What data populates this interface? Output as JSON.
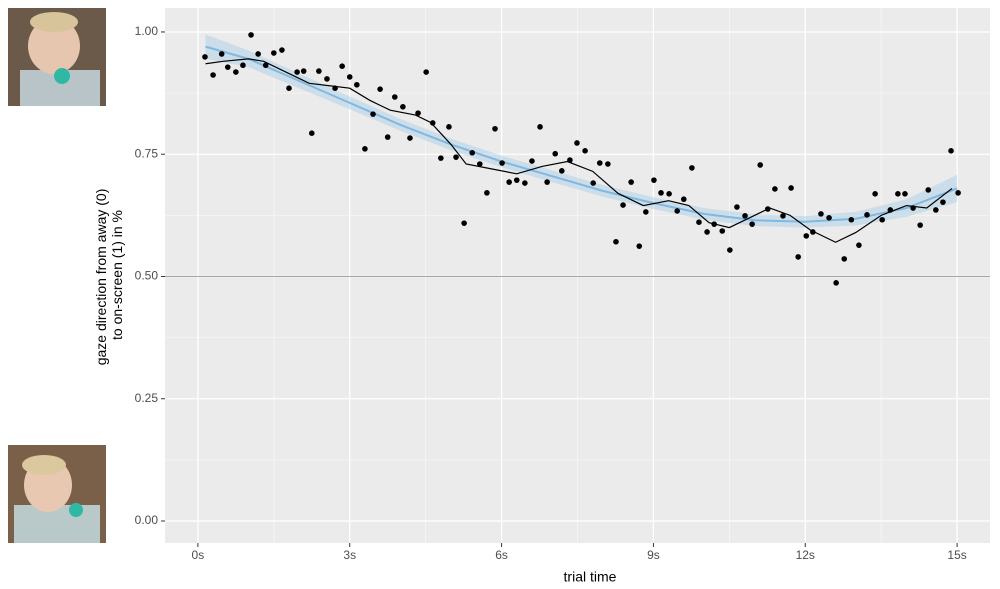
{
  "chart_data": {
    "type": "scatter",
    "xlabel": "trial time",
    "ylabel": [
      "gaze direction from away (0)",
      "to on-screen (1) in %"
    ],
    "xlim": [
      -0.65,
      15.65
    ],
    "ylim": [
      -0.045,
      1.049
    ],
    "xticks": [
      {
        "value": 0,
        "label": "0s"
      },
      {
        "value": 3,
        "label": "3s"
      },
      {
        "value": 6,
        "label": "6s"
      },
      {
        "value": 9,
        "label": "9s"
      },
      {
        "value": 12,
        "label": "12s"
      },
      {
        "value": 15,
        "label": "15s"
      }
    ],
    "yticks": [
      {
        "value": 0,
        "label": "0.00"
      },
      {
        "value": 0.25,
        "label": "0.25"
      },
      {
        "value": 0.5,
        "label": "0.50"
      },
      {
        "value": 0.75,
        "label": "0.75"
      },
      {
        "value": 1,
        "label": "1.00"
      }
    ],
    "xminor": [
      1.5,
      4.5,
      7.5,
      10.5,
      13.5
    ],
    "yminor": [
      0.125,
      0.375,
      0.625,
      0.875
    ],
    "grid": true,
    "hline": 0.5,
    "points": {
      "color": "#000000",
      "x": [
        0.14,
        0.3,
        0.47,
        0.59,
        0.75,
        0.89,
        1.05,
        1.19,
        1.34,
        1.5,
        1.66,
        1.8,
        1.96,
        2.09,
        2.25,
        2.39,
        2.55,
        2.71,
        2.85,
        3.0,
        3.14,
        3.3,
        3.46,
        3.6,
        3.75,
        3.89,
        4.05,
        4.19,
        4.35,
        4.51,
        4.64,
        4.8,
        4.96,
        5.1,
        5.26,
        5.42,
        5.57,
        5.71,
        5.87,
        6.01,
        6.15,
        6.3,
        6.46,
        6.6,
        6.76,
        6.9,
        7.06,
        7.19,
        7.35,
        7.49,
        7.65,
        7.81,
        7.94,
        8.1,
        8.26,
        8.4,
        8.56,
        8.72,
        8.85,
        9.01,
        9.15,
        9.31,
        9.47,
        9.6,
        9.76,
        9.9,
        10.06,
        10.2,
        10.36,
        10.51,
        10.65,
        10.81,
        10.95,
        11.11,
        11.26,
        11.4,
        11.56,
        11.72,
        11.86,
        12.02,
        12.15,
        12.31,
        12.47,
        12.61,
        12.77,
        12.91,
        13.06,
        13.22,
        13.38,
        13.52,
        13.68,
        13.83,
        13.97,
        14.13,
        14.27,
        14.43,
        14.58,
        14.72,
        14.88,
        15.02
      ],
      "values": [
        0.949,
        0.912,
        0.955,
        0.928,
        0.918,
        0.932,
        0.994,
        0.955,
        0.932,
        0.957,
        0.963,
        0.885,
        0.918,
        0.92,
        0.793,
        0.92,
        0.904,
        0.885,
        0.93,
        0.908,
        0.892,
        0.761,
        0.832,
        0.883,
        0.785,
        0.867,
        0.847,
        0.783,
        0.834,
        0.918,
        0.814,
        0.742,
        0.806,
        0.744,
        0.609,
        0.753,
        0.73,
        0.671,
        0.802,
        0.732,
        0.693,
        0.697,
        0.691,
        0.736,
        0.806,
        0.693,
        0.751,
        0.716,
        0.738,
        0.773,
        0.757,
        0.691,
        0.732,
        0.73,
        0.571,
        0.646,
        0.693,
        0.562,
        0.632,
        0.697,
        0.671,
        0.669,
        0.634,
        0.658,
        0.722,
        0.611,
        0.591,
        0.607,
        0.593,
        0.554,
        0.642,
        0.624,
        0.607,
        0.728,
        0.638,
        0.679,
        0.624,
        0.681,
        0.54,
        0.583,
        0.591,
        0.628,
        0.62,
        0.487,
        0.536,
        0.616,
        0.564,
        0.626,
        0.669,
        0.616,
        0.636,
        0.669,
        0.669,
        0.64,
        0.605,
        0.677,
        0.636,
        0.652,
        0.757,
        0.671
      ]
    },
    "band": {
      "color": "#a6cde9",
      "x": [
        0.15,
        1,
        2,
        3,
        4,
        5,
        6,
        7,
        8,
        9,
        10,
        11,
        12,
        13,
        14,
        15
      ],
      "lower": [
        0.945,
        0.928,
        0.885,
        0.842,
        0.798,
        0.758,
        0.723,
        0.693,
        0.663,
        0.638,
        0.616,
        0.603,
        0.6,
        0.604,
        0.622,
        0.652
      ],
      "upper": [
        0.995,
        0.962,
        0.915,
        0.868,
        0.822,
        0.782,
        0.747,
        0.717,
        0.687,
        0.662,
        0.64,
        0.627,
        0.624,
        0.632,
        0.658,
        0.708
      ]
    },
    "lines": [
      {
        "color": "#7fb8e0",
        "width": 2,
        "x": [
          0.15,
          1,
          2,
          3,
          4,
          5,
          6,
          7,
          8,
          9,
          10,
          11,
          12,
          13,
          14,
          15
        ],
        "values": [
          0.97,
          0.945,
          0.9,
          0.855,
          0.81,
          0.77,
          0.735,
          0.705,
          0.675,
          0.65,
          0.628,
          0.615,
          0.612,
          0.618,
          0.64,
          0.68
        ]
      },
      {
        "color": "#000000",
        "width": 1.2,
        "x": [
          0.15,
          0.5,
          1.0,
          1.3,
          1.8,
          2.2,
          2.6,
          3.0,
          3.4,
          3.8,
          4.3,
          4.6,
          5.0,
          5.3,
          5.8,
          6.3,
          6.8,
          7.3,
          7.8,
          8.3,
          8.8,
          9.3,
          9.7,
          10.1,
          10.5,
          10.9,
          11.3,
          11.7,
          12.1,
          12.6,
          13.0,
          13.5,
          14.0,
          14.4,
          14.9
        ],
        "values": [
          0.935,
          0.94,
          0.945,
          0.94,
          0.915,
          0.895,
          0.89,
          0.885,
          0.86,
          0.84,
          0.83,
          0.815,
          0.77,
          0.73,
          0.72,
          0.71,
          0.725,
          0.735,
          0.715,
          0.67,
          0.645,
          0.655,
          0.645,
          0.61,
          0.6,
          0.62,
          0.64,
          0.625,
          0.595,
          0.57,
          0.59,
          0.625,
          0.645,
          0.64,
          0.68
        ]
      }
    ]
  }
}
